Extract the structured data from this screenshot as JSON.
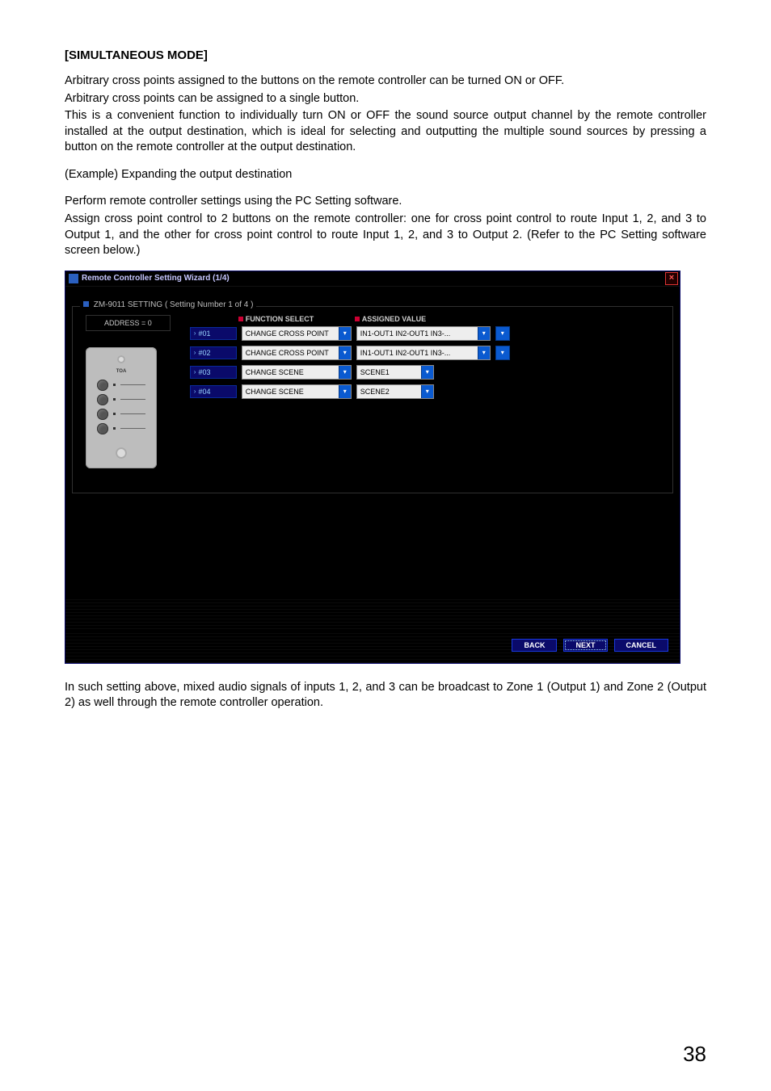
{
  "doc": {
    "heading": "[SIMULTANEOUS MODE]",
    "p1": "Arbitrary cross points assigned to the buttons on the remote controller can be turned ON or OFF.",
    "p2": "Arbitrary cross points can be assigned to a single button.",
    "p3": "This is a convenient function to individually turn ON or OFF the sound source output channel by the remote controller installed at the output destination, which is ideal for selecting and outputting the multiple sound sources by pressing a button on the remote controller at the output destination.",
    "p4": "(Example) Expanding the output destination",
    "p5": "Perform remote controller settings using the PC Setting software.",
    "p6": "Assign cross point control to 2 buttons on the remote controller: one for cross point control to route Input 1, 2, and 3 to Output 1, and the other for cross point control to route Input 1, 2, and 3 to Output 2. (Refer to the PC Setting software screen below.)",
    "p7": "In such setting above, mixed audio signals of inputs 1, 2, and 3 can be broadcast to Zone 1 (Output 1) and Zone 2 (Output 2) as well through the remote controller operation.",
    "page_number": "38"
  },
  "wizard": {
    "title": "Remote Controller Setting Wizard (1/4)",
    "panel_title": "ZM-9011 SETTING  ( Setting Number 1 of 4 )",
    "address_label": "ADDRESS = 0",
    "remote_brand": "TOA",
    "headers": {
      "function_select": "FUNCTION SELECT",
      "assigned_value": "ASSIGNED VALUE"
    },
    "rows": [
      {
        "id": "#01",
        "function": "CHANGE CROSS POINT",
        "value": "IN1-OUT1 IN2-OUT1 IN3-...",
        "wide": true
      },
      {
        "id": "#02",
        "function": "CHANGE CROSS POINT",
        "value": "IN1-OUT1 IN2-OUT1 IN3-...",
        "wide": true
      },
      {
        "id": "#03",
        "function": "CHANGE SCENE",
        "value": "SCENE1",
        "wide": false
      },
      {
        "id": "#04",
        "function": "CHANGE SCENE",
        "value": "SCENE2",
        "wide": false
      }
    ],
    "buttons": {
      "back": "BACK",
      "next": "NEXT",
      "cancel": "CANCEL"
    },
    "colors": {
      "window_bg": "#000000",
      "accent_blue": "#0a0a6a",
      "dropdown_arrow": "#0a5ad0",
      "marker_red": "#c03",
      "label_text": "#cfcfcf",
      "id_text": "#9ad6ff"
    }
  }
}
